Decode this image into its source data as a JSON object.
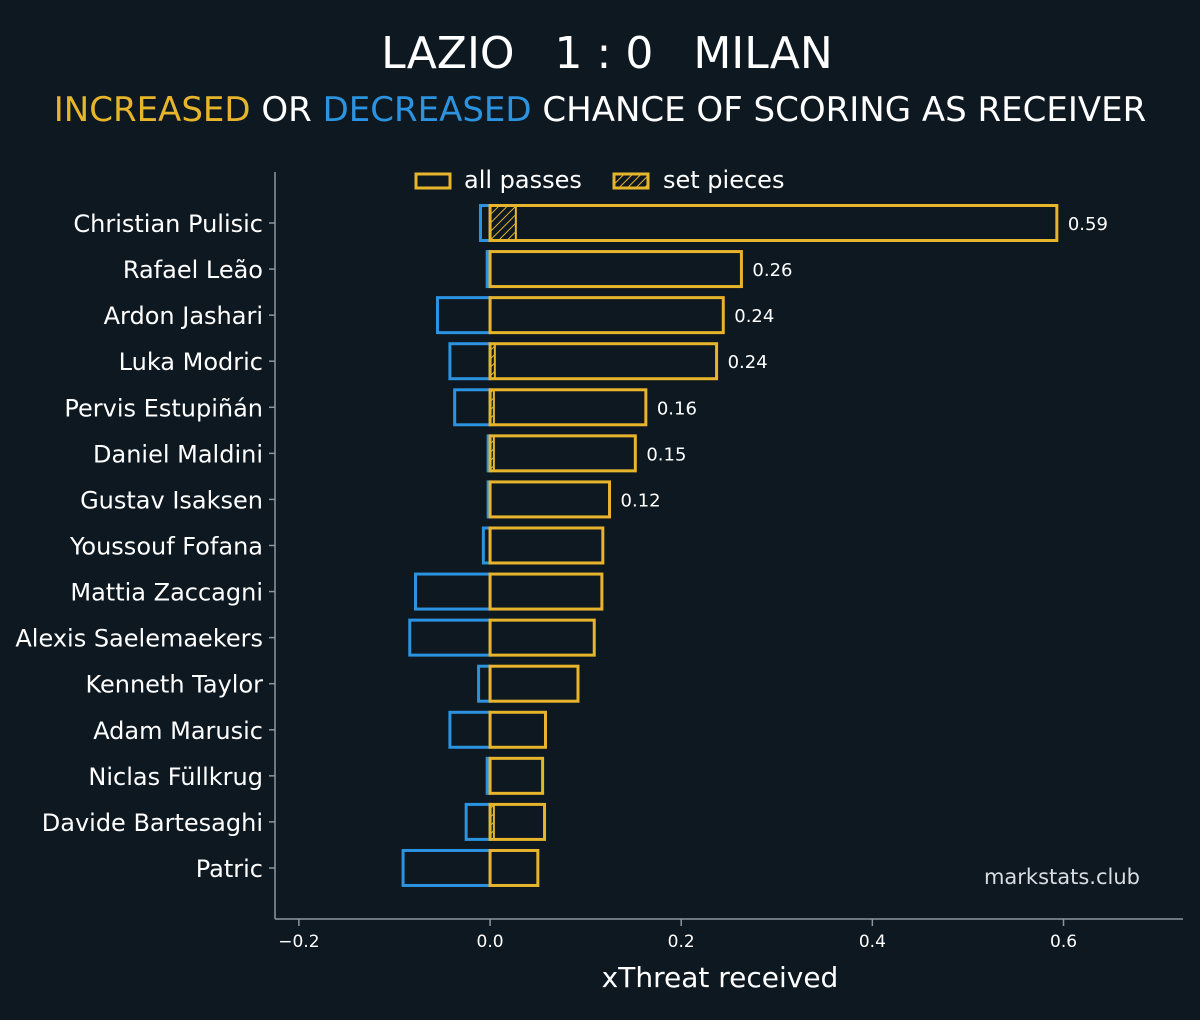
{
  "chart_data": {
    "type": "bar",
    "orientation": "horizontal",
    "title": {
      "home_team": "LAZIO",
      "score": "1 : 0",
      "away_team": "MILAN"
    },
    "subtitle": {
      "increased": "INCREASED",
      "or": " OR ",
      "decreased": "DECREASED",
      "rest": " CHANCE OF SCORING AS RECEIVER"
    },
    "xlabel": "xThreat received",
    "xlim": [
      -0.225,
      0.725
    ],
    "xticks": [
      -0.2,
      0.0,
      0.2,
      0.4,
      0.6
    ],
    "xtick_labels": [
      "−0.2",
      "0.0",
      "0.2",
      "0.4",
      "0.6"
    ],
    "legend": {
      "placement": "top",
      "all_passes": "all passes",
      "set_pieces": "set pieces"
    },
    "colors": {
      "background": "#0e1820",
      "increased": "#e6b52c",
      "decreased": "#2b93e0",
      "axis": "#8a97a0"
    },
    "watermark": "markstats.club",
    "players": [
      {
        "name": "Christian Pulisic",
        "positive": 0.593,
        "negative": -0.01,
        "set_pieces": 0.027,
        "label": "0.59"
      },
      {
        "name": "Rafael Leão",
        "positive": 0.263,
        "negative": -0.003,
        "set_pieces": 0.0,
        "label": "0.26"
      },
      {
        "name": "Ardon Jashari",
        "positive": 0.244,
        "negative": -0.055,
        "set_pieces": 0.0,
        "label": "0.24"
      },
      {
        "name": "Luka Modric",
        "positive": 0.237,
        "negative": -0.042,
        "set_pieces": 0.005,
        "label": "0.24"
      },
      {
        "name": "Pervis Estupiñán",
        "positive": 0.163,
        "negative": -0.037,
        "set_pieces": 0.004,
        "label": "0.16"
      },
      {
        "name": "Daniel Maldini",
        "positive": 0.152,
        "negative": -0.002,
        "set_pieces": 0.004,
        "label": "0.15"
      },
      {
        "name": "Gustav Isaksen",
        "positive": 0.125,
        "negative": -0.002,
        "set_pieces": 0.0,
        "label": "0.12"
      },
      {
        "name": "Youssouf Fofana",
        "positive": 0.118,
        "negative": -0.007,
        "set_pieces": 0.0,
        "label": ""
      },
      {
        "name": "Mattia Zaccagni",
        "positive": 0.117,
        "negative": -0.078,
        "set_pieces": 0.0,
        "label": ""
      },
      {
        "name": "Alexis Saelemaekers",
        "positive": 0.109,
        "negative": -0.084,
        "set_pieces": 0.0,
        "label": ""
      },
      {
        "name": "Kenneth Taylor",
        "positive": 0.092,
        "negative": -0.012,
        "set_pieces": 0.0,
        "label": ""
      },
      {
        "name": "Adam Marusic",
        "positive": 0.058,
        "negative": -0.042,
        "set_pieces": 0.0,
        "label": ""
      },
      {
        "name": "Niclas Füllkrug",
        "positive": 0.055,
        "negative": -0.003,
        "set_pieces": 0.0,
        "label": ""
      },
      {
        "name": "Davide Bartesaghi",
        "positive": 0.057,
        "negative": -0.025,
        "set_pieces": 0.004,
        "label": ""
      },
      {
        "name": "Patric",
        "positive": 0.05,
        "negative": -0.091,
        "set_pieces": 0.0,
        "label": ""
      }
    ]
  }
}
